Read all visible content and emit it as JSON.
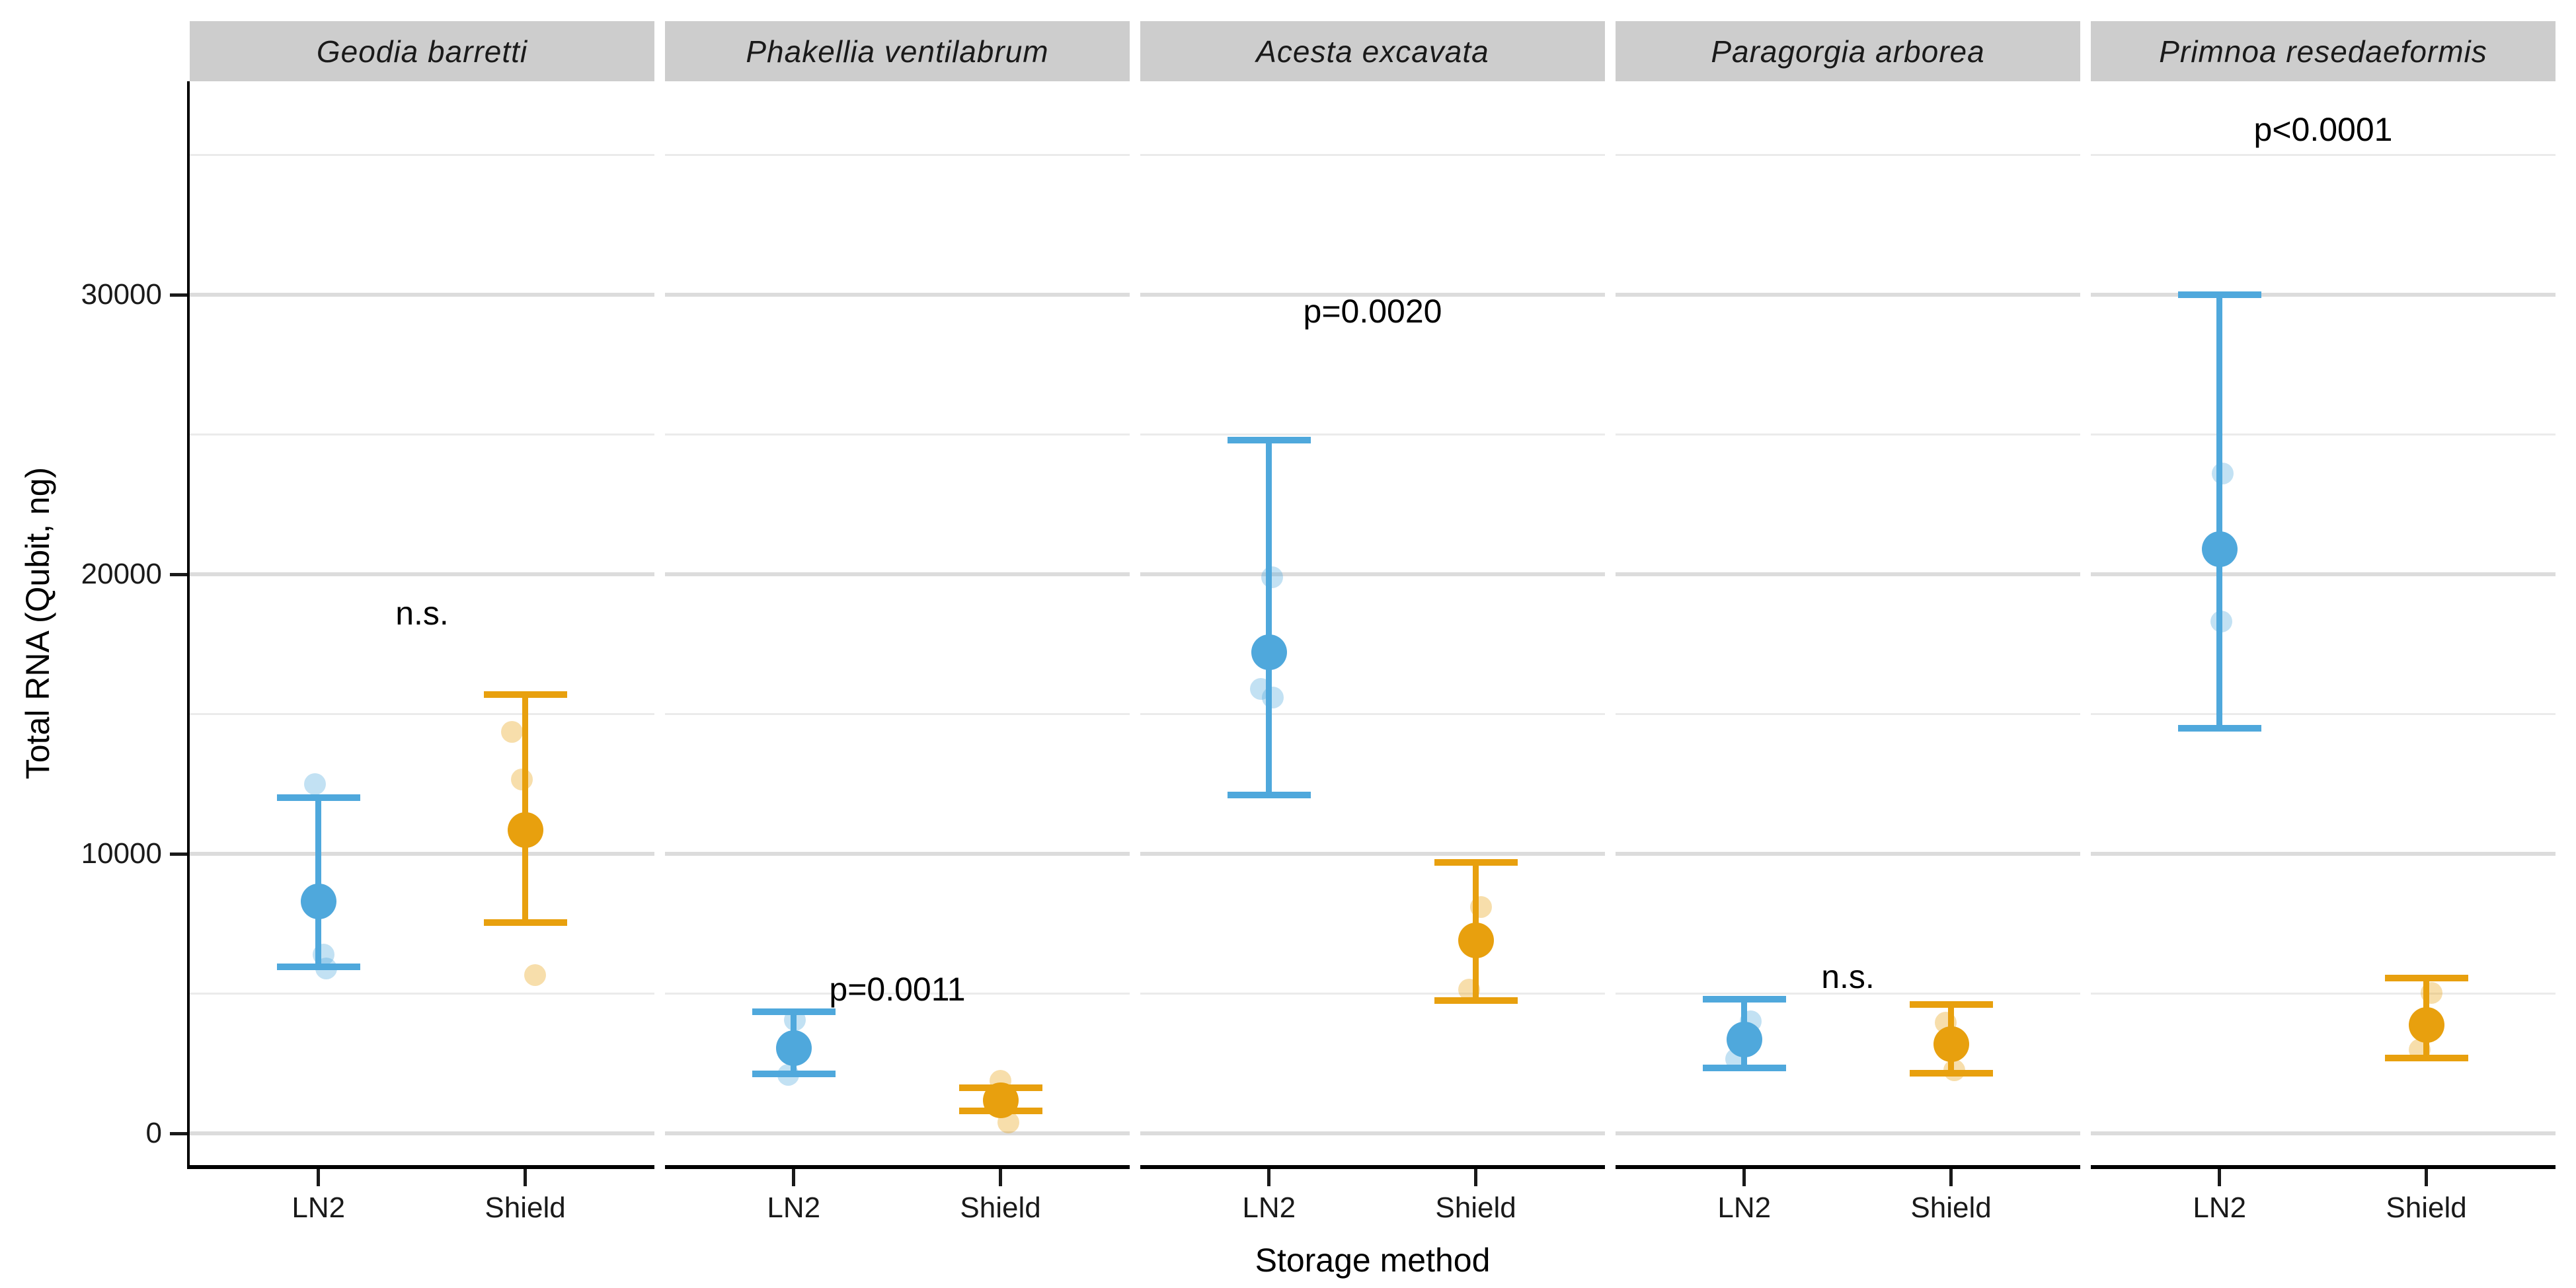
{
  "chart_data": {
    "type": "pointrange-facet",
    "xlabel": "Storage method",
    "ylabel": "Total RNA (Qubit, ng)",
    "ylim": [
      -1135,
      37630
    ],
    "grid": true,
    "y_ticks": [
      {
        "label": "0",
        "value": 0
      },
      {
        "label": "10000",
        "value": 10000
      },
      {
        "label": "20000",
        "value": 20000
      },
      {
        "label": "30000",
        "value": 30000
      }
    ],
    "y_minor_gridlines": [
      5000,
      15000,
      25000,
      35000
    ],
    "categories": [
      "LN2",
      "Shield"
    ],
    "colors": {
      "LN2": "#4fa8dc",
      "Shield": "#e8a00e",
      "strip_bg": "#cdcdcd",
      "grid_major": "#dcdcdc",
      "grid_minor": "#ebebeb",
      "axis": "#000000"
    },
    "facets": [
      {
        "label": "Geodia barretti",
        "annotation": {
          "text": "n.s.",
          "y": 18600
        },
        "groups": [
          {
            "method": "LN2",
            "mean": 8300,
            "lo": 5950,
            "hi": 12000,
            "points": [
              {
                "y": 12500,
                "dx": -5
              },
              {
                "y": 6400,
                "dx": 8
              },
              {
                "y": 5900,
                "dx": 12
              }
            ]
          },
          {
            "method": "Shield",
            "mean": 10850,
            "lo": 7550,
            "hi": 15700,
            "points": [
              {
                "y": 14350,
                "dx": -20
              },
              {
                "y": 12650,
                "dx": -5
              },
              {
                "y": 5650,
                "dx": 15
              }
            ]
          }
        ]
      },
      {
        "label": "Phakellia ventilabrum",
        "annotation": {
          "text": "p=0.0011",
          "y": 5150
        },
        "groups": [
          {
            "method": "LN2",
            "mean": 3050,
            "lo": 2130,
            "hi": 4350,
            "points": [
              {
                "y": 4050,
                "dx": 2
              },
              {
                "y": 2100,
                "dx": -8
              }
            ]
          },
          {
            "method": "Shield",
            "mean": 1180,
            "lo": 800,
            "hi": 1630,
            "points": [
              {
                "y": 1890,
                "dx": 0
              },
              {
                "y": 400,
                "dx": 12
              }
            ]
          }
        ]
      },
      {
        "label": "Acesta excavata",
        "annotation": {
          "text": "p=0.0020",
          "y": 29400
        },
        "groups": [
          {
            "method": "LN2",
            "mean": 17200,
            "lo": 12100,
            "hi": 24800,
            "points": [
              {
                "y": 19900,
                "dx": 5
              },
              {
                "y": 15900,
                "dx": -12
              },
              {
                "y": 15600,
                "dx": 6
              }
            ]
          },
          {
            "method": "Shield",
            "mean": 6900,
            "lo": 4750,
            "hi": 9700,
            "points": [
              {
                "y": 8100,
                "dx": 8
              },
              {
                "y": 5150,
                "dx": -10
              }
            ]
          }
        ]
      },
      {
        "label": "Paragorgia arborea",
        "annotation": {
          "text": "n.s.",
          "y": 5600
        },
        "groups": [
          {
            "method": "LN2",
            "mean": 3350,
            "lo": 2350,
            "hi": 4800,
            "points": [
              {
                "y": 4000,
                "dx": 10
              },
              {
                "y": 2650,
                "dx": -12
              }
            ]
          },
          {
            "method": "Shield",
            "mean": 3200,
            "lo": 2150,
            "hi": 4600,
            "points": [
              {
                "y": 3950,
                "dx": -8
              },
              {
                "y": 2250,
                "dx": 5
              }
            ]
          }
        ]
      },
      {
        "label": "Primnoa resedaeformis",
        "annotation": {
          "text": "p<0.0001",
          "y": 35900
        },
        "groups": [
          {
            "method": "LN2",
            "mean": 20900,
            "lo": 14500,
            "hi": 30000,
            "points": [
              {
                "y": 23600,
                "dx": 5
              },
              {
                "y": 18300,
                "dx": 3
              }
            ]
          },
          {
            "method": "Shield",
            "mean": 3870,
            "lo": 2690,
            "hi": 5550,
            "points": [
              {
                "y": 5030,
                "dx": 8
              },
              {
                "y": 3000,
                "dx": -10
              }
            ]
          }
        ]
      }
    ]
  }
}
